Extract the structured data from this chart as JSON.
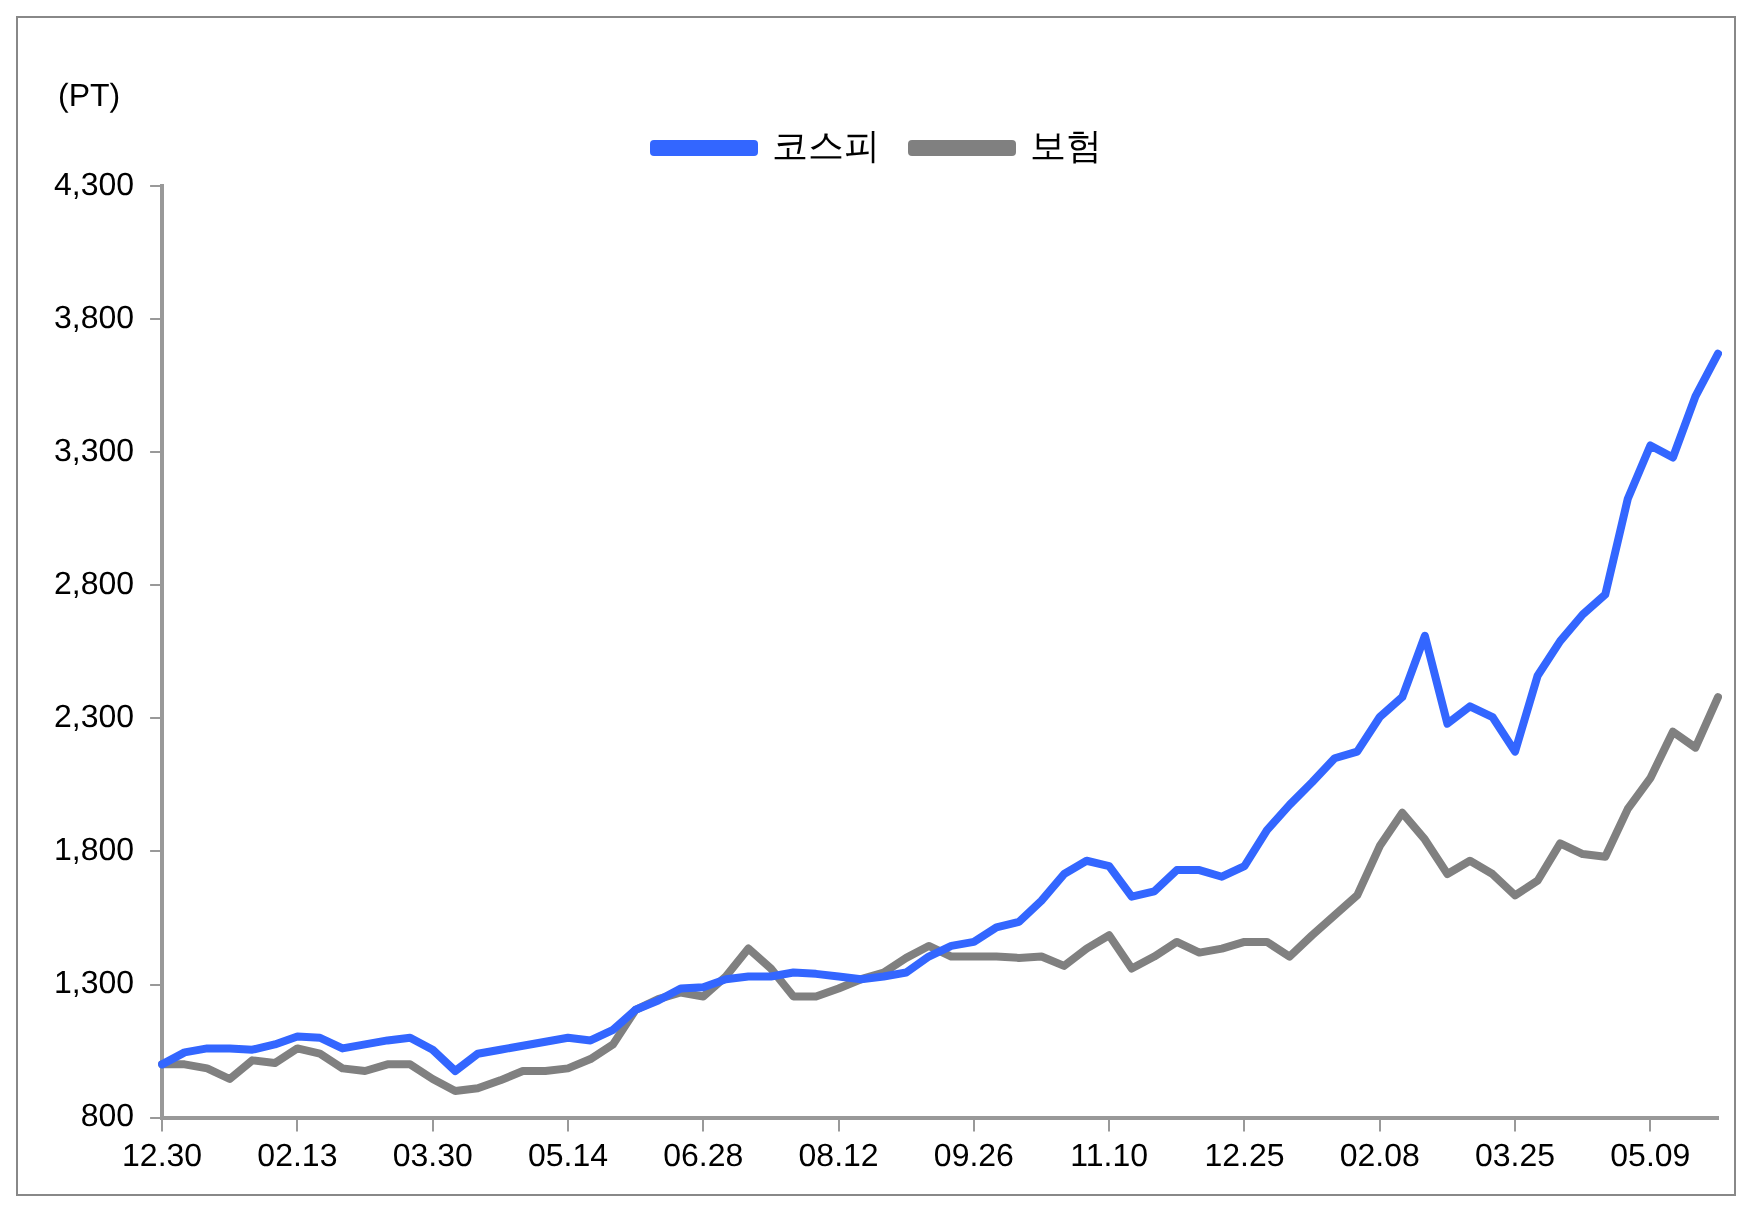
{
  "chart_data": {
    "type": "line",
    "ylabel": "(PT)",
    "categories": [
      "12.30",
      null,
      null,
      null,
      null,
      null,
      "02.13",
      null,
      null,
      null,
      null,
      null,
      "03.30",
      null,
      null,
      null,
      null,
      null,
      "05.14",
      null,
      null,
      null,
      null,
      null,
      "06.28",
      null,
      null,
      null,
      null,
      null,
      "08.12",
      null,
      null,
      null,
      null,
      null,
      "09.26",
      null,
      null,
      null,
      null,
      null,
      "11.10",
      null,
      null,
      null,
      null,
      null,
      "12.25",
      null,
      null,
      null,
      null,
      null,
      "02.08",
      null,
      null,
      null,
      null,
      null,
      "03.25",
      null,
      null,
      null,
      null,
      null,
      "05.09",
      null,
      null,
      null
    ],
    "series": [
      {
        "name": "코스피",
        "color": "#3366ff",
        "values": [
          1000,
          1045,
          1060,
          1060,
          1055,
          1075,
          1105,
          1100,
          1060,
          1075,
          1090,
          1100,
          1055,
          975,
          1040,
          1055,
          1070,
          1085,
          1100,
          1090,
          1130,
          1205,
          1240,
          1285,
          1290,
          1320,
          1330,
          1330,
          1345,
          1340,
          1330,
          1320,
          1330,
          1345,
          1405,
          1445,
          1460,
          1515,
          1535,
          1615,
          1715,
          1765,
          1745,
          1630,
          1650,
          1730,
          1730,
          1705,
          1745,
          1880,
          1975,
          2060,
          2150,
          2175,
          2305,
          2380,
          2610,
          2280,
          2345,
          2305,
          2175,
          2460,
          2590,
          2690,
          2765,
          3125,
          3325,
          3280,
          3510,
          3670
        ]
      },
      {
        "name": "보험",
        "color": "#808080",
        "values": [
          1000,
          1000,
          985,
          945,
          1015,
          1005,
          1060,
          1040,
          985,
          975,
          1000,
          1000,
          945,
          900,
          910,
          940,
          975,
          975,
          985,
          1020,
          1075,
          1205,
          1245,
          1270,
          1255,
          1330,
          1435,
          1360,
          1255,
          1255,
          1285,
          1320,
          1345,
          1400,
          1445,
          1405,
          1405,
          1405,
          1400,
          1405,
          1370,
          1435,
          1485,
          1360,
          1405,
          1460,
          1420,
          1435,
          1460,
          1460,
          1405,
          1485,
          1560,
          1635,
          1820,
          1945,
          1845,
          1715,
          1765,
          1715,
          1635,
          1690,
          1830,
          1790,
          1780,
          1960,
          2075,
          2250,
          2190,
          2380
        ]
      }
    ],
    "ylim": [
      800,
      4300
    ],
    "yticks": [
      {
        "value": 800,
        "label": "800"
      },
      {
        "value": 1300,
        "label": "1,300"
      },
      {
        "value": 1800,
        "label": "1,800"
      },
      {
        "value": 2300,
        "label": "2,300"
      },
      {
        "value": 2800,
        "label": "2,800"
      },
      {
        "value": 3300,
        "label": "3,300"
      },
      {
        "value": 3800,
        "label": "3,800"
      },
      {
        "value": 4300,
        "label": "4,300"
      }
    ],
    "grid": false,
    "legend": "top",
    "marker": "none",
    "line_style": "solid"
  }
}
